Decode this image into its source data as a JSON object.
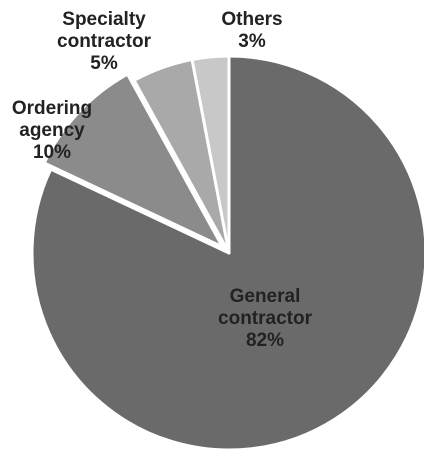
{
  "chart_data": {
    "type": "pie",
    "title": "",
    "slices": [
      {
        "label_lines": [
          "General",
          "contractor"
        ],
        "value": 82,
        "value_label": "82%",
        "color": "#6a6a6a",
        "label_color": "#222222"
      },
      {
        "label_lines": [
          "Ordering",
          "agency"
        ],
        "value": 10,
        "value_label": "10%",
        "color": "#8b8b8b",
        "label_color": "#222222"
      },
      {
        "label_lines": [
          "Specialty",
          "contractor"
        ],
        "value": 5,
        "value_label": "5%",
        "color": "#a9a9a9",
        "label_color": "#222222"
      },
      {
        "label_lines": [
          "Others"
        ],
        "value": 3,
        "value_label": "3%",
        "color": "#c8c8c8",
        "label_color": "#222222"
      }
    ],
    "start_angle_deg": 0,
    "direction": "clockwise",
    "legend": "none"
  }
}
